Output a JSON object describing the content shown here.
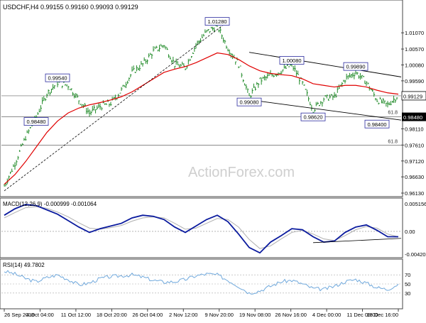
{
  "header": {
    "title": "USDCHF,H4  0.99155 0.99160 0.99093 0.99129"
  },
  "watermark": "ActionForex.com",
  "colors": {
    "price_bars": "#1f8a27",
    "moving_average": "#e00000",
    "macd_line": "#0a1a9e",
    "macd_signal": "#b0b0b0",
    "rsi_line": "#6fa8dc",
    "trendline": "#000000",
    "label_border": "#2a2a9e"
  },
  "chart_data": [
    {
      "type": "line",
      "name": "price",
      "title": "USDCHF,H4  0.99155 0.99160 0.99093 0.99129",
      "x": [
        "26 Sep 2018",
        "4 Oct 04:00",
        "11 Oct 12:00",
        "18 Oct 20:00",
        "26 Oct 04:00",
        "2 Nov 12:00",
        "9 Nov 20:00",
        "19 Nov 08:00",
        "26 Nov 16:00",
        "4 Dec 00:00",
        "11 Dec 08:00",
        "18 Dec 16:00"
      ],
      "ylim": [
        0.9613,
        1.0195
      ],
      "y_ticks": [
        "1.01070",
        "1.00570",
        "1.00080",
        "0.99590",
        "0.99129",
        "0.98480",
        "0.98110",
        "0.97610",
        "0.97120",
        "0.96630",
        "0.96130"
      ],
      "close_series": [
        0.9635,
        0.9705,
        0.9785,
        0.9848,
        0.992,
        0.9954,
        0.9945,
        0.99,
        0.986,
        0.988,
        0.989,
        0.993,
        0.9985,
        1.001,
        1.005,
        1.007,
        1.001,
        1.0,
        1.007,
        1.011,
        1.0128,
        1.006,
        1.001,
        0.991,
        0.996,
        0.9975,
        0.999,
        1.0008,
        0.995,
        0.987,
        0.9905,
        0.991,
        0.9965,
        0.9985,
        0.9955,
        0.99,
        0.9885,
        0.9915
      ],
      "moving_average": [
        0.964,
        0.967,
        0.971,
        0.9755,
        0.98,
        0.9835,
        0.986,
        0.9875,
        0.9885,
        0.9892,
        0.99,
        0.991,
        0.9925,
        0.9945,
        0.9965,
        0.9985,
        0.9995,
        1.0003,
        1.0015,
        1.003,
        1.0045,
        1.004,
        1.0025,
        1.0005,
        0.999,
        0.9982,
        0.9978,
        0.9975,
        0.9965,
        0.995,
        0.9945,
        0.994,
        0.9945,
        0.9945,
        0.994,
        0.993,
        0.9922,
        0.9918
      ],
      "price_labels": [
        {
          "text": "1.01280",
          "value": 1.0128,
          "at": 20
        },
        {
          "text": "0.99540",
          "value": 0.9954,
          "at": 5
        },
        {
          "text": "0.98480",
          "value": 0.9848,
          "at": 3
        },
        {
          "text": "0.99080",
          "value": 0.9908,
          "at": 23
        },
        {
          "text": "1.00080",
          "value": 1.0008,
          "at": 27
        },
        {
          "text": "0.99890",
          "value": 0.9989,
          "at": 33
        },
        {
          "text": "0.98620",
          "value": 0.9862,
          "at": 29
        },
        {
          "text": "0.98400",
          "value": 0.984,
          "at": 35
        }
      ],
      "horizontal_levels": [
        {
          "value": 0.99129,
          "label": "0.99129",
          "label_style": "boxed"
        },
        {
          "value": 0.9848,
          "label": "0.98480",
          "label_style": "filled"
        },
        {
          "value": 0.9761,
          "label": "61.8",
          "label_style": "plain"
        }
      ],
      "fib_label_near_current": "61.8"
    },
    {
      "type": "line",
      "name": "MACD",
      "title": "MACD(12,26,9) -0.000999 -0.001064",
      "ylim": [
        -0.0045,
        0.0058
      ],
      "y_ticks": [
        "0.005156",
        "0.00",
        "-0.004209"
      ],
      "macd": [
        0.003,
        0.0042,
        0.005,
        0.0048,
        0.004,
        0.0032,
        0.002,
        0.0008,
        -0.0002,
        0.0005,
        0.001,
        0.0015,
        0.0025,
        0.003,
        0.0028,
        0.0022,
        0.0008,
        -0.0002,
        0.001,
        0.0022,
        0.003,
        0.0018,
        -0.0005,
        -0.003,
        -0.004,
        -0.002,
        -0.0008,
        0.0005,
        0.0003,
        -0.001,
        -0.002,
        -0.0018,
        -0.0002,
        0.0008,
        0.0012,
        0.0002,
        -0.001,
        -0.001
      ],
      "signal": [
        0.0025,
        0.0035,
        0.0044,
        0.0046,
        0.0043,
        0.0036,
        0.0027,
        0.0016,
        0.0006,
        0.0004,
        0.0007,
        0.0011,
        0.0019,
        0.0025,
        0.0027,
        0.0025,
        0.0015,
        0.0004,
        0.0006,
        0.0015,
        0.0024,
        0.0022,
        0.0008,
        -0.0015,
        -0.0032,
        -0.0027,
        -0.0014,
        -0.0002,
        0.0002,
        -0.0005,
        -0.0014,
        -0.0017,
        -0.0008,
        0.0003,
        0.0009,
        0.0006,
        -0.0005,
        -0.001
      ]
    },
    {
      "type": "line",
      "name": "RSI(14)",
      "title": "RSI(14) 49.7802",
      "ylim": [
        0,
        100
      ],
      "y_ticks": [
        "70",
        "50",
        "30"
      ],
      "rsi": [
        78,
        72,
        62,
        55,
        64,
        70,
        60,
        48,
        52,
        62,
        66,
        68,
        70,
        65,
        58,
        54,
        55,
        60,
        68,
        72,
        70,
        58,
        45,
        30,
        35,
        45,
        55,
        58,
        50,
        40,
        38,
        45,
        55,
        60,
        52,
        42,
        38,
        49.78
      ]
    }
  ]
}
